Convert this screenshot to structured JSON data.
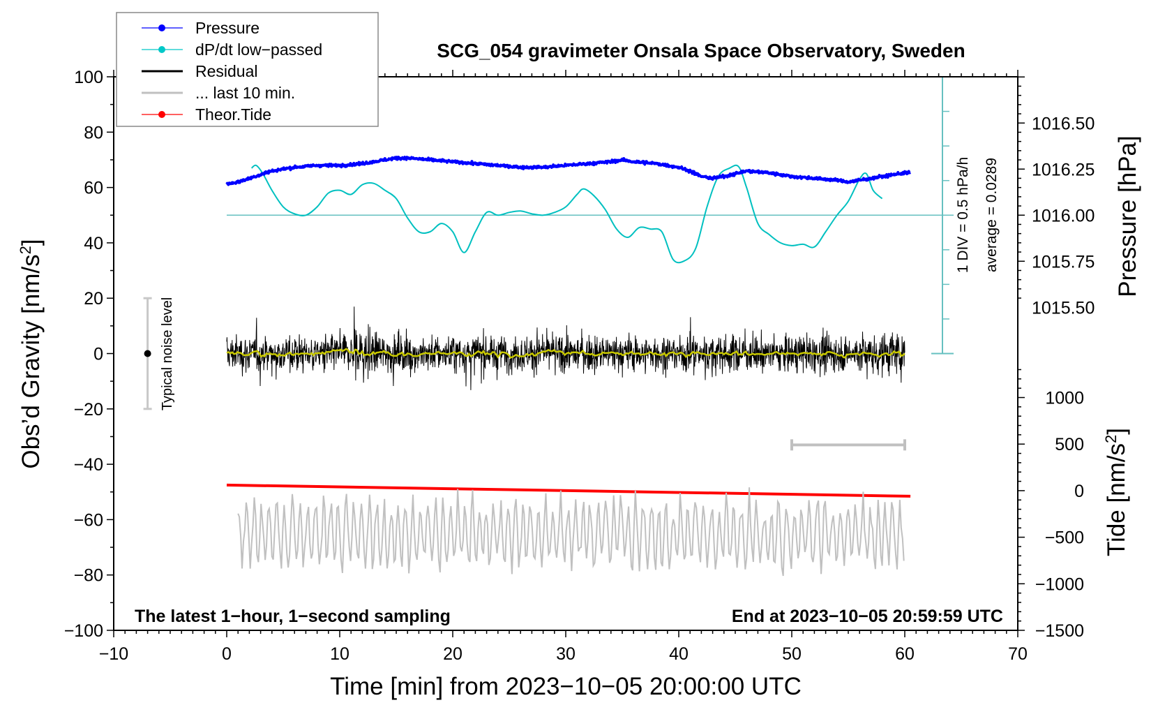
{
  "chart_data": {
    "type": "line",
    "title": "SCG_054 gravimeter Onsala Space Observatory, Sweden",
    "xlabel": "Time [min] from 2023−10−05 20:00:00 UTC",
    "ylabel_left": "Obs’d Gravity [nm/s²]",
    "ylabel_left_parts": {
      "main": "Obs’d Gravity [nm/s",
      "sup": "2",
      "end": "]"
    },
    "ylabel_right_pressure": "Pressure [hPa]",
    "ylabel_right_tide_parts": {
      "main": "Tide [nm/s",
      "sup": "2",
      "end": "]"
    },
    "xlim": [
      -10,
      70
    ],
    "xticks": [
      -10,
      0,
      10,
      20,
      30,
      40,
      50,
      60,
      70
    ],
    "xtick_labels": [
      "−10",
      "0",
      "10",
      "20",
      "30",
      "40",
      "50",
      "60",
      "70"
    ],
    "ylim_left": [
      -100,
      100
    ],
    "yticks_left": [
      100,
      80,
      60,
      40,
      20,
      0,
      -20,
      -40,
      -60,
      -80,
      -100
    ],
    "ytick_labels_left": [
      "100",
      "80",
      "60",
      "40",
      "20",
      "0",
      "−20",
      "−40",
      "−60",
      "−80",
      "−100"
    ],
    "pressure_axis": {
      "ticks": [
        1016.5,
        1016.25,
        1016.0,
        1015.75,
        1015.5
      ],
      "tick_labels": [
        "1016.50",
        "1016.25",
        "1016.00",
        "1015.75",
        "1015.50"
      ]
    },
    "tide_axis": {
      "ticks": [
        1000,
        500,
        0,
        -500,
        -1000,
        -1500
      ],
      "tick_labels": [
        "1000",
        "500",
        "0",
        "−500",
        "−1000",
        "−1500"
      ]
    },
    "legend": {
      "placement": "top-left",
      "entries": [
        {
          "label": "Pressure",
          "color": "#0000ff",
          "marker": true
        },
        {
          "label": "dP/dt low−passed",
          "color": "#00c8c8",
          "marker": true
        },
        {
          "label": "Residual",
          "color": "#000000",
          "marker": false
        },
        {
          "label": "... last 10 min.",
          "color": "#c0c0c0",
          "marker": false
        },
        {
          "label": "Theor.Tide",
          "color": "#ff0000",
          "marker": true
        }
      ]
    },
    "annotations": {
      "bottom_left": "The latest 1−hour, 1−second sampling",
      "bottom_right": "End at 2023−10−05 20:59:59 UTC",
      "noise_label": "Typical noise level",
      "noise_level": {
        "x": -7,
        "center": 0,
        "range": [
          -20,
          20
        ]
      },
      "dpdt_scale_1": "1 DIV = 0.5 hPa/h",
      "dpdt_scale_2": "average = 0.0289",
      "last10_bracket": {
        "x": [
          50,
          60
        ],
        "y": -33
      }
    },
    "series": [
      {
        "name": "Pressure",
        "color": "#0000ff",
        "axis": "pressure",
        "x": [
          0,
          1,
          2,
          3,
          4,
          5,
          6,
          8,
          10,
          12,
          14,
          15,
          16,
          18,
          20,
          22,
          24,
          26,
          28,
          30,
          32,
          34,
          35,
          36,
          38,
          40,
          41,
          42,
          43,
          44,
          46,
          48,
          50,
          52,
          54,
          55,
          56,
          57,
          58,
          59,
          60
        ],
        "y": [
          1016.17,
          1016.18,
          1016.2,
          1016.22,
          1016.24,
          1016.25,
          1016.26,
          1016.27,
          1016.27,
          1016.28,
          1016.3,
          1016.31,
          1016.31,
          1016.3,
          1016.29,
          1016.28,
          1016.27,
          1016.26,
          1016.26,
          1016.27,
          1016.28,
          1016.29,
          1016.3,
          1016.29,
          1016.28,
          1016.26,
          1016.24,
          1016.21,
          1016.2,
          1016.21,
          1016.24,
          1016.23,
          1016.21,
          1016.2,
          1016.19,
          1016.18,
          1016.19,
          1016.2,
          1016.21,
          1016.22,
          1016.23
        ]
      },
      {
        "name": "dP/dt low-passed",
        "color": "#00c8c8",
        "axis": "left",
        "baseline_left": 50,
        "x": [
          2.2,
          2.6,
          3.2,
          4,
          5,
          6,
          7,
          8,
          9,
          10,
          11,
          12,
          13,
          14,
          15,
          16,
          17,
          18,
          19,
          20,
          21,
          22,
          23,
          24,
          25,
          26,
          27,
          28,
          29,
          30,
          31,
          31.6,
          32.5,
          33.5,
          34.5,
          35.5,
          36.5,
          37.5,
          38.5,
          39.5,
          40.5,
          41.5,
          42.5,
          43.5,
          44.5,
          45.3,
          46,
          47,
          48,
          49,
          50,
          51,
          52,
          53,
          54,
          55,
          56,
          56.6,
          57.2,
          58
        ],
        "y": [
          67,
          68,
          65,
          59,
          53,
          50.5,
          50,
          53,
          58,
          59,
          57.5,
          61,
          61.5,
          59,
          56,
          49,
          44,
          44,
          47,
          44,
          36.5,
          44,
          51,
          50,
          51,
          51.5,
          50.5,
          50,
          51,
          53,
          57.5,
          59.5,
          57,
          52,
          45,
          42,
          45.5,
          45,
          44,
          34,
          33.5,
          38,
          53,
          64,
          67,
          67.5,
          60,
          47,
          43,
          40,
          39,
          39.5,
          38.5,
          44,
          50,
          55,
          63,
          65,
          59,
          56
        ]
      },
      {
        "name": "Residual",
        "color": "#000000",
        "axis": "left",
        "x_range": [
          0,
          60
        ],
        "sampling": "1 s",
        "approx_amplitude": 15,
        "min": -24,
        "max": 28
      },
      {
        "name": "Residual smoothed",
        "color": "#c8c800",
        "axis": "left",
        "x_range": [
          0,
          60
        ],
        "approx_level": 0
      },
      {
        "name": "... last 10 min.",
        "color": "#c0c0c0",
        "axis": "left",
        "x_range_source": [
          50,
          60
        ],
        "x_range_display": [
          1,
          60
        ],
        "center": -65,
        "min": -83,
        "max": -43
      },
      {
        "name": "Theor.Tide",
        "color": "#ff0000",
        "axis": "tide",
        "x": [
          0,
          60.5
        ],
        "y": [
          60,
          -60
        ]
      }
    ],
    "grid": false
  }
}
